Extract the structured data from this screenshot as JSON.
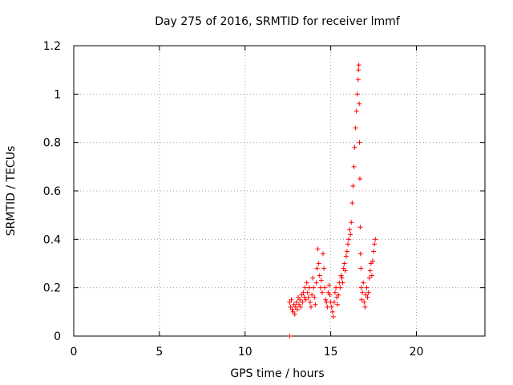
{
  "chart_data": {
    "type": "scatter",
    "title": "Day 275 of 2016, SRMTID for receiver lmmf",
    "xlabel": "GPS time / hours",
    "ylabel": "SRMTID / TECUs",
    "xlim": [
      0,
      24
    ],
    "ylim": [
      0,
      1.2
    ],
    "xticks": [
      0,
      5,
      10,
      15,
      20
    ],
    "xtick_labels": [
      "0",
      "5",
      "10",
      "15",
      "20"
    ],
    "yticks": [
      0,
      0.2,
      0.4,
      0.6,
      0.8,
      1.0,
      1.2
    ],
    "ytick_labels": [
      "0",
      "0.2",
      "0.4",
      "0.6",
      "0.8",
      "1",
      "1.2"
    ],
    "grid": true,
    "marker": "+",
    "color": "#ff0000",
    "series": [
      {
        "name": "SRMTID",
        "x": [
          12.6,
          12.6,
          12.65,
          12.7,
          12.75,
          12.8,
          12.85,
          12.9,
          12.95,
          13.0,
          13.05,
          13.1,
          13.15,
          13.2,
          13.25,
          13.3,
          13.35,
          13.4,
          13.45,
          13.5,
          13.55,
          13.6,
          13.65,
          13.7,
          13.75,
          13.8,
          13.85,
          13.9,
          13.95,
          14.0,
          14.05,
          14.1,
          14.15,
          14.2,
          14.25,
          14.3,
          14.35,
          14.4,
          14.45,
          14.5,
          14.55,
          14.6,
          14.65,
          14.7,
          14.75,
          14.8,
          14.85,
          14.9,
          14.95,
          15.0,
          15.05,
          15.1,
          15.15,
          15.2,
          15.25,
          15.3,
          15.35,
          15.4,
          15.45,
          15.5,
          15.55,
          15.6,
          15.65,
          15.7,
          15.75,
          15.8,
          15.85,
          15.9,
          15.95,
          16.0,
          16.05,
          16.1,
          16.15,
          16.2,
          16.25,
          16.3,
          16.35,
          16.4,
          16.45,
          16.5,
          16.55,
          16.6,
          16.62,
          16.64,
          16.66,
          16.68,
          16.7,
          16.72,
          16.74,
          16.76,
          16.78,
          16.8,
          16.85,
          16.9,
          16.95,
          17.0,
          17.05,
          17.1,
          17.15,
          17.2,
          17.25,
          17.3,
          17.35,
          17.4,
          17.45,
          17.5,
          17.55,
          17.6
        ],
        "y": [
          0.0,
          0.14,
          0.12,
          0.15,
          0.11,
          0.1,
          0.13,
          0.09,
          0.12,
          0.14,
          0.11,
          0.16,
          0.13,
          0.15,
          0.12,
          0.17,
          0.14,
          0.18,
          0.16,
          0.2,
          0.15,
          0.22,
          0.18,
          0.16,
          0.2,
          0.14,
          0.12,
          0.17,
          0.24,
          0.2,
          0.16,
          0.13,
          0.22,
          0.28,
          0.36,
          0.3,
          0.25,
          0.2,
          0.23,
          0.18,
          0.34,
          0.28,
          0.2,
          0.15,
          0.14,
          0.12,
          0.18,
          0.21,
          0.17,
          0.14,
          0.12,
          0.1,
          0.08,
          0.14,
          0.18,
          0.2,
          0.16,
          0.13,
          0.17,
          0.22,
          0.2,
          0.25,
          0.24,
          0.22,
          0.28,
          0.3,
          0.27,
          0.33,
          0.35,
          0.38,
          0.4,
          0.44,
          0.42,
          0.47,
          0.55,
          0.62,
          0.7,
          0.78,
          0.86,
          0.93,
          1.0,
          1.06,
          1.1,
          1.12,
          0.96,
          0.8,
          0.65,
          0.45,
          0.34,
          0.28,
          0.2,
          0.15,
          0.18,
          0.22,
          0.14,
          0.12,
          0.17,
          0.2,
          0.16,
          0.18,
          0.24,
          0.27,
          0.3,
          0.25,
          0.31,
          0.35,
          0.38,
          0.4
        ]
      }
    ]
  }
}
